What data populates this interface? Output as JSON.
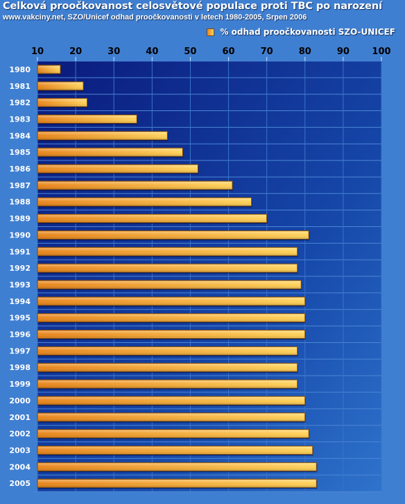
{
  "header": {
    "title": "Celková proočkovanost celosvětové populace proti TBC po narození",
    "subtitle": "www.vakciny.net, SZO/Unicef odhad proočkovanosti v letech 1980-2005, Srpen 2006"
  },
  "colors": {
    "background": "#3f7fd1",
    "plot_background": "#0a1e82",
    "bar_start": "#e8851c",
    "bar_end": "#ffd25a",
    "grid": "#3a74c8"
  },
  "chart_data": {
    "type": "bar",
    "orientation": "horizontal",
    "title": "Celková proočkovanost celosvětové populace proti TBC po narození",
    "subtitle": "www.vakciny.net, SZO/Unicef odhad proočkovanosti v letech 1980-2005, Srpen 2006",
    "xlim": [
      10,
      100
    ],
    "xticks": [
      "10",
      "20",
      "30",
      "40",
      "50",
      "60",
      "70",
      "80",
      "90",
      "100"
    ],
    "categories": [
      "1980",
      "1981",
      "1982",
      "1983",
      "1984",
      "1985",
      "1986",
      "1987",
      "1988",
      "1989",
      "1990",
      "1991",
      "1992",
      "1993",
      "1994",
      "1995",
      "1996",
      "1997",
      "1998",
      "1999",
      "2000",
      "2001",
      "2002",
      "2003",
      "2004",
      "2005"
    ],
    "series": [
      {
        "name": "% odhad proočkovanosti SZO-UNICEF",
        "values": [
          16,
          22,
          23,
          36,
          44,
          48,
          52,
          61,
          66,
          70,
          81,
          78,
          78,
          79,
          80,
          80,
          80,
          78,
          78,
          78,
          80,
          80,
          81,
          82,
          83,
          83
        ]
      }
    ],
    "legend": "top-right",
    "grid": true
  }
}
